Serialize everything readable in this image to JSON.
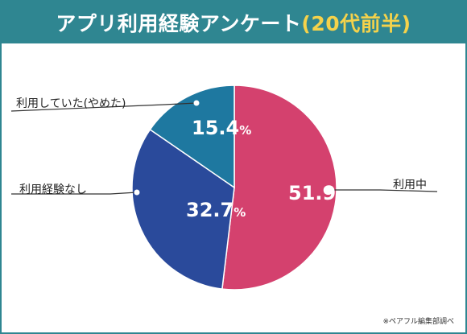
{
  "title": {
    "main": "アプリ利用経験アンケート",
    "accent": "(20代前半)"
  },
  "colors": {
    "header": "#2f8691",
    "accent": "#f4d24b",
    "slices": [
      "#d4416e",
      "#2a4a9b",
      "#1e78a0"
    ]
  },
  "chart_data": {
    "type": "pie",
    "title": "アプリ利用経験アンケート(20代前半)",
    "categories": [
      "利用中",
      "利用経験なし",
      "利用していた(やめた)"
    ],
    "values": [
      51.9,
      32.7,
      15.4
    ],
    "value_labels": [
      "51.9",
      "32.7",
      "15.4"
    ],
    "unit": "%",
    "legend": "none"
  },
  "source": "※ペアフル編集部調べ"
}
